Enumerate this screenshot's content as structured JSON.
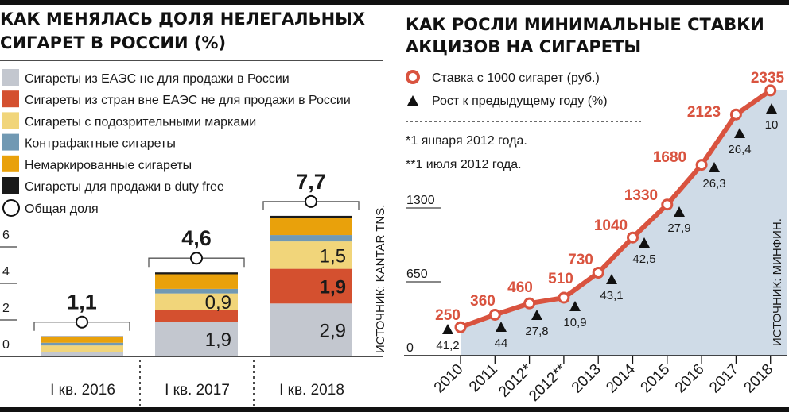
{
  "chart_data": [
    {
      "type": "bar",
      "stacked": true,
      "title": "КАК МЕНЯЛАСЬ ДОЛЯ НЕЛЕГАЛЬНЫХ СИГАРЕТ В РОССИИ (%)",
      "title_lines": [
        "КАК МЕНЯЛАСЬ ДОЛЯ НЕЛЕГАЛЬНЫХ",
        "СИГАРЕТ В РОССИИ (%)"
      ],
      "categories": [
        "I кв. 2016",
        "I кв. 2017",
        "I кв. 2018"
      ],
      "totals": [
        "1,1",
        "4,6",
        "7,7"
      ],
      "total_values": [
        1.1,
        4.6,
        7.7
      ],
      "total_legend": "Общая доля",
      "series": [
        {
          "name": "Сигареты из ЕАЭС не для продажи в России",
          "color": "#c3c7cf",
          "values": [
            0.22,
            1.9,
            2.9
          ],
          "labels": [
            "",
            "1,9",
            "2,9"
          ]
        },
        {
          "name": "Сигареты из стран вне ЕАЭС не для продажи в России",
          "color": "#d4502f",
          "values": [
            0.03,
            0.65,
            1.9
          ],
          "labels": [
            "",
            "",
            "1,9"
          ]
        },
        {
          "name": "Сигареты с подозрительными марками",
          "color": "#f1d57a",
          "values": [
            0.35,
            0.9,
            1.5
          ],
          "labels": [
            "",
            "0,9",
            "1,5"
          ]
        },
        {
          "name": "Контрафактные сигареты",
          "color": "#7199b3",
          "values": [
            0.15,
            0.25,
            0.35
          ],
          "labels": [
            "",
            "",
            ""
          ]
        },
        {
          "name": "Немаркированные сигареты",
          "color": "#e9a10b",
          "values": [
            0.3,
            0.8,
            0.95
          ],
          "labels": [
            "",
            "",
            ""
          ]
        },
        {
          "name": "Сигареты для продажи в duty free",
          "color": "#1a1a1a",
          "values": [
            0.05,
            0.1,
            0.1
          ],
          "labels": [
            "",
            "",
            ""
          ]
        }
      ],
      "yticks": [
        "0",
        "2",
        "4",
        "6"
      ],
      "ylim": [
        0,
        8
      ],
      "source": "ИСТОЧНИК: KANTAR TNS."
    },
    {
      "type": "line",
      "title": "КАК РОСЛИ МИНИМАЛЬНЫЕ СТАВКИ АКЦИЗОВ НА СИГАРЕТЫ",
      "title_lines": [
        "КАК РОСЛИ МИНИМАЛЬНЫЕ СТАВКИ",
        "АКЦИЗОВ НА СИГАРЕТЫ"
      ],
      "x": [
        "2010",
        "2011",
        "2012*",
        "2012**",
        "2013",
        "2014",
        "2015",
        "2016",
        "2017",
        "2018"
      ],
      "series": [
        {
          "name": "Ставка с 1000 сигарет (руб.)",
          "color": "#d9533f",
          "values": [
            250,
            360,
            460,
            510,
            730,
            1040,
            1330,
            1680,
            2123,
            2335
          ]
        },
        {
          "name": "Рост к предыдущему году (%)",
          "color": "#1a1a1a",
          "values": [
            41.2,
            44,
            27.8,
            10.9,
            43.1,
            42.5,
            27.9,
            26.3,
            26.4,
            10
          ],
          "labels": [
            "41,2",
            "44",
            "27,8",
            "10,9",
            "43,1",
            "42,5",
            "27,9",
            "26,3",
            "26,4",
            "10"
          ]
        }
      ],
      "yticks": [
        "0",
        "650",
        "1300"
      ],
      "ylim": [
        0,
        2400
      ],
      "area_color": "#cfdbe7",
      "footnotes": [
        "*1 января 2012 года.",
        "**1 июля 2012 года."
      ],
      "source": "ИСТОЧНИК: МИНФИН."
    }
  ]
}
